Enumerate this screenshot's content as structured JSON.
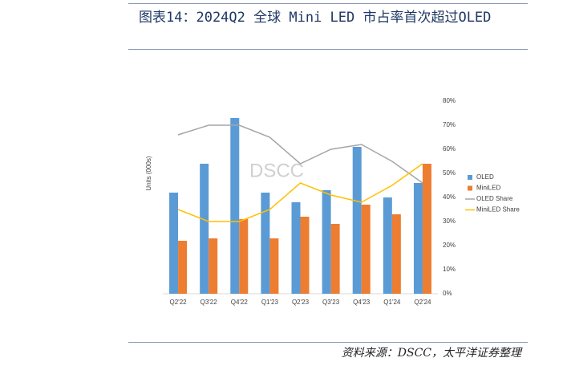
{
  "title": "图表14：2024Q2 全球 Mini LED 市占率首次超过OLED",
  "source": "资料来源：DSCC，太平洋证券整理",
  "chart_data": {
    "type": "bar-line",
    "y_label": "Units (000s)",
    "watermark": "DSCC",
    "categories": [
      "Q2'22",
      "Q3'22",
      "Q4'22",
      "Q1'23",
      "Q2'23",
      "Q3'23",
      "Q4'23",
      "Q1'24",
      "Q2'24"
    ],
    "series": [
      {
        "name": "OLED",
        "color": "#5b9bd5",
        "kind": "bar",
        "values": [
          42,
          54,
          73,
          42,
          38,
          43,
          61,
          40,
          46
        ]
      },
      {
        "name": "MiniLED",
        "color": "#ed7d31",
        "kind": "bar",
        "values": [
          22,
          23,
          31,
          23,
          32,
          29,
          37,
          33,
          54
        ]
      },
      {
        "name": "OLED Share",
        "color": "#a5a5a5",
        "kind": "line",
        "axis": "y2",
        "values": [
          66,
          70,
          70,
          65,
          54,
          60,
          62,
          55,
          46
        ]
      },
      {
        "name": "MiniLED Share",
        "color": "#ffc000",
        "kind": "line",
        "axis": "y2",
        "values": [
          35,
          30,
          30,
          35,
          46,
          41,
          38,
          45,
          54
        ]
      }
    ],
    "ylim": [
      0,
      80
    ],
    "y2lim": [
      0,
      80
    ],
    "y2ticks": [
      {
        "value": 0,
        "label": "0%"
      },
      {
        "value": 10,
        "label": "10%"
      },
      {
        "value": 20,
        "label": "20%"
      },
      {
        "value": 30,
        "label": "30%"
      },
      {
        "value": 40,
        "label": "40%"
      },
      {
        "value": 50,
        "label": "50%"
      },
      {
        "value": 60,
        "label": "60%"
      },
      {
        "value": 70,
        "label": "70%"
      },
      {
        "value": 80,
        "label": "80%"
      }
    ],
    "legend": "right"
  }
}
